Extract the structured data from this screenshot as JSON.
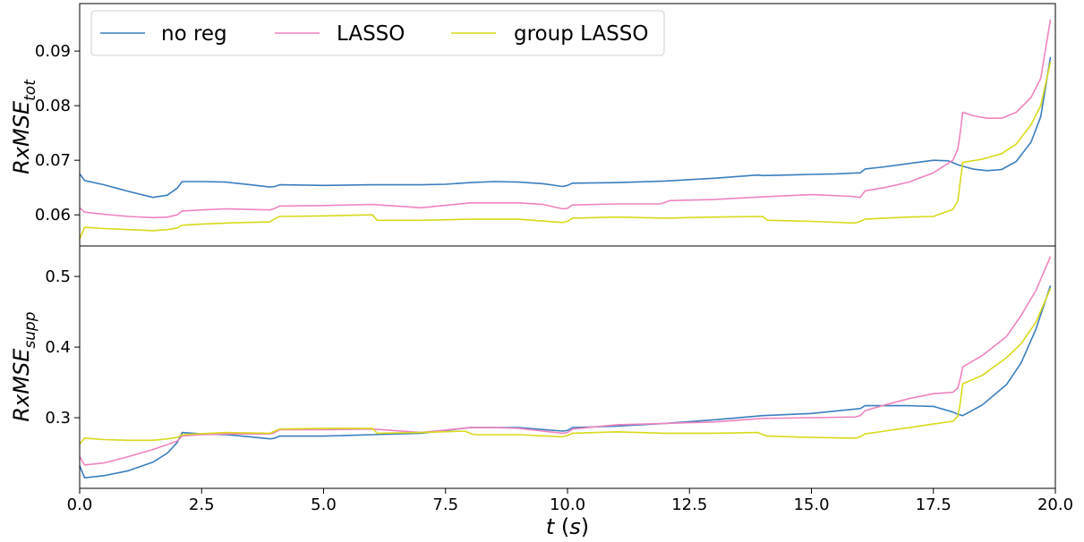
{
  "chart_data": [
    {
      "type": "line",
      "ylabel": "RxMSE",
      "ylabel_sub": "tot",
      "xlim": [
        0,
        20
      ],
      "ylim": [
        0.0543,
        0.0987
      ],
      "yticks": [
        "0.06",
        "0.07",
        "0.08",
        "0.09"
      ],
      "ytick_values": [
        0.06,
        0.07,
        0.08,
        0.09
      ],
      "legend": {
        "position": "top-left",
        "entries": [
          "no reg",
          "LASSO",
          "group LASSO"
        ]
      },
      "series": [
        {
          "name": "no reg",
          "color": "#3a7ebf",
          "x": [
            0,
            0.1,
            0.5,
            1.0,
            1.5,
            1.8,
            2.0,
            2.1,
            2.5,
            3.0,
            3.5,
            3.9,
            4.0,
            4.1,
            5.0,
            6.0,
            7.0,
            7.5,
            8.0,
            8.5,
            9.0,
            9.5,
            9.9,
            10.0,
            10.1,
            11.0,
            12.0,
            13.0,
            13.9,
            14.0,
            15.0,
            15.5,
            16.0,
            16.1,
            16.5,
            17.0,
            17.5,
            17.8,
            18.0,
            18.3,
            18.6,
            18.9,
            19.2,
            19.5,
            19.7,
            19.9
          ],
          "y": [
            0.0675,
            0.0663,
            0.0655,
            0.0643,
            0.0632,
            0.0636,
            0.0649,
            0.0661,
            0.0661,
            0.066,
            0.0655,
            0.0651,
            0.0652,
            0.0655,
            0.0654,
            0.0655,
            0.0655,
            0.0656,
            0.0659,
            0.0661,
            0.066,
            0.0657,
            0.0652,
            0.0654,
            0.0658,
            0.0659,
            0.0662,
            0.0667,
            0.0673,
            0.0672,
            0.0674,
            0.0675,
            0.0677,
            0.0684,
            0.0688,
            0.0694,
            0.07,
            0.0699,
            0.0692,
            0.0684,
            0.0681,
            0.0683,
            0.0698,
            0.0733,
            0.078,
            0.0889
          ]
        },
        {
          "name": "LASSO",
          "color": "#ef84c0",
          "x": [
            0,
            0.1,
            0.5,
            1.0,
            1.5,
            1.8,
            2.0,
            2.1,
            2.5,
            3.0,
            3.9,
            4.0,
            4.1,
            5.0,
            6.0,
            7.0,
            8.0,
            8.5,
            9.0,
            9.5,
            9.9,
            10.0,
            10.1,
            11.0,
            11.9,
            12.0,
            12.1,
            13.0,
            14.0,
            15.0,
            15.8,
            16.0,
            16.1,
            16.5,
            17.0,
            17.5,
            17.9,
            18.0,
            18.05,
            18.1,
            18.3,
            18.6,
            18.9,
            19.2,
            19.5,
            19.7,
            19.9
          ],
          "y": [
            0.0613,
            0.0605,
            0.0601,
            0.0597,
            0.0595,
            0.0596,
            0.06,
            0.0607,
            0.0609,
            0.0611,
            0.0609,
            0.0612,
            0.0616,
            0.0617,
            0.0619,
            0.0613,
            0.0622,
            0.0622,
            0.0622,
            0.0619,
            0.0611,
            0.0612,
            0.0618,
            0.062,
            0.062,
            0.0623,
            0.0626,
            0.0628,
            0.0633,
            0.0637,
            0.0634,
            0.0632,
            0.0644,
            0.065,
            0.066,
            0.0677,
            0.07,
            0.072,
            0.075,
            0.0788,
            0.0782,
            0.0777,
            0.0777,
            0.0788,
            0.0815,
            0.085,
            0.0958
          ]
        },
        {
          "name": "group LASSO",
          "color": "#d9d91c",
          "x": [
            0,
            0.1,
            0.5,
            1.0,
            1.5,
            1.8,
            2.0,
            2.1,
            2.5,
            3.0,
            3.9,
            4.0,
            4.1,
            5.0,
            6.0,
            6.1,
            7.0,
            8.0,
            9.0,
            9.9,
            10.0,
            10.1,
            11.0,
            12.0,
            13.0,
            14.0,
            14.1,
            15.0,
            15.9,
            16.0,
            16.1,
            16.5,
            17.0,
            17.5,
            17.9,
            18.0,
            18.05,
            18.1,
            18.5,
            18.9,
            19.2,
            19.5,
            19.7,
            19.9
          ],
          "y": [
            0.0556,
            0.0577,
            0.0575,
            0.0573,
            0.0571,
            0.0573,
            0.0576,
            0.0581,
            0.0583,
            0.0585,
            0.0587,
            0.0593,
            0.0597,
            0.0598,
            0.06,
            0.059,
            0.059,
            0.0592,
            0.0592,
            0.0586,
            0.0588,
            0.0594,
            0.0596,
            0.0594,
            0.0596,
            0.0597,
            0.059,
            0.0588,
            0.0585,
            0.0588,
            0.0592,
            0.0594,
            0.0596,
            0.0597,
            0.061,
            0.0625,
            0.066,
            0.0696,
            0.0702,
            0.0712,
            0.073,
            0.0765,
            0.08,
            0.088
          ]
        }
      ]
    },
    {
      "type": "line",
      "ylabel": "RxMSE",
      "ylabel_sub": "supp",
      "xlabel": "t",
      "xlabel_unit": "(s)",
      "xlim": [
        0,
        20
      ],
      "ylim": [
        0.2,
        0.5432
      ],
      "xticks": [
        "0.0",
        "2.5",
        "5.0",
        "7.5",
        "10.0",
        "12.5",
        "15.0",
        "17.5",
        "20.0"
      ],
      "xtick_values": [
        0,
        2.5,
        5,
        7.5,
        10,
        12.5,
        15,
        17.5,
        20
      ],
      "yticks": [
        "0.3",
        "0.4",
        "0.5"
      ],
      "ytick_values": [
        0.3,
        0.4,
        0.5
      ],
      "series": [
        {
          "name": "no reg",
          "color": "#3a7ebf",
          "x": [
            0,
            0.1,
            0.5,
            1.0,
            1.5,
            1.8,
            2.0,
            2.1,
            2.5,
            3.0,
            3.5,
            3.9,
            4.0,
            4.1,
            5.0,
            6.0,
            7.0,
            7.5,
            8.0,
            9.0,
            9.9,
            10.0,
            10.1,
            11.0,
            12.0,
            13.0,
            14.0,
            15.0,
            16.0,
            16.1,
            16.5,
            17.0,
            17.5,
            17.9,
            18.0,
            18.1,
            18.5,
            19.0,
            19.3,
            19.6,
            19.9
          ],
          "y": [
            0.232,
            0.215,
            0.218,
            0.225,
            0.237,
            0.25,
            0.265,
            0.279,
            0.277,
            0.276,
            0.273,
            0.27,
            0.271,
            0.274,
            0.274,
            0.276,
            0.278,
            0.282,
            0.286,
            0.286,
            0.281,
            0.282,
            0.286,
            0.288,
            0.292,
            0.297,
            0.303,
            0.306,
            0.313,
            0.317,
            0.317,
            0.317,
            0.316,
            0.308,
            0.305,
            0.303,
            0.318,
            0.347,
            0.378,
            0.425,
            0.487
          ]
        },
        {
          "name": "LASSO",
          "color": "#ef84c0",
          "x": [
            0,
            0.1,
            0.5,
            1.0,
            1.5,
            1.8,
            2.0,
            2.1,
            2.5,
            3.0,
            3.9,
            4.0,
            4.1,
            5.0,
            6.0,
            7.0,
            8.0,
            8.5,
            9.0,
            9.9,
            10.0,
            10.1,
            11.0,
            12.0,
            13.0,
            14.0,
            15.0,
            15.9,
            16.0,
            16.1,
            16.5,
            17.0,
            17.5,
            17.9,
            18.0,
            18.05,
            18.1,
            18.5,
            19.0,
            19.3,
            19.6,
            19.9
          ],
          "y": [
            0.245,
            0.233,
            0.236,
            0.245,
            0.255,
            0.262,
            0.267,
            0.274,
            0.276,
            0.277,
            0.277,
            0.279,
            0.283,
            0.283,
            0.284,
            0.279,
            0.286,
            0.286,
            0.285,
            0.278,
            0.279,
            0.284,
            0.29,
            0.292,
            0.294,
            0.299,
            0.3,
            0.301,
            0.303,
            0.31,
            0.318,
            0.327,
            0.334,
            0.336,
            0.342,
            0.355,
            0.372,
            0.388,
            0.415,
            0.445,
            0.48,
            0.528
          ]
        },
        {
          "name": "group LASSO",
          "color": "#d9d91c",
          "x": [
            0,
            0.1,
            0.5,
            1.0,
            1.5,
            1.8,
            2.0,
            2.1,
            3.0,
            3.9,
            4.0,
            4.1,
            5.0,
            6.0,
            6.1,
            7.0,
            7.9,
            8.0,
            8.1,
            9.0,
            9.9,
            10.0,
            10.1,
            11.0,
            12.0,
            13.0,
            13.9,
            14.0,
            14.1,
            15.0,
            15.9,
            16.0,
            16.1,
            16.5,
            17.0,
            17.5,
            17.9,
            18.0,
            18.05,
            18.1,
            18.5,
            19.0,
            19.3,
            19.6,
            19.9
          ],
          "y": [
            0.263,
            0.271,
            0.269,
            0.268,
            0.268,
            0.27,
            0.272,
            0.276,
            0.279,
            0.278,
            0.281,
            0.284,
            0.285,
            0.285,
            0.278,
            0.279,
            0.281,
            0.278,
            0.276,
            0.276,
            0.273,
            0.275,
            0.278,
            0.28,
            0.278,
            0.278,
            0.279,
            0.276,
            0.274,
            0.272,
            0.271,
            0.273,
            0.277,
            0.281,
            0.286,
            0.291,
            0.295,
            0.302,
            0.32,
            0.348,
            0.36,
            0.385,
            0.405,
            0.435,
            0.483
          ]
        }
      ]
    }
  ]
}
